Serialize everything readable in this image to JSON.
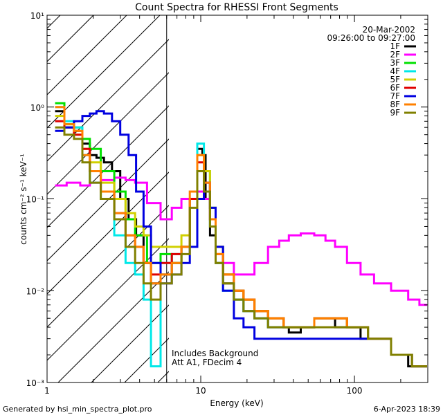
{
  "chart_data": {
    "type": "line",
    "title": "Count Spectra for RHESSI Front Segments",
    "xlabel": "Energy (keV)",
    "ylabel": "counts cm⁻² s⁻¹ keV⁻¹",
    "x_scale": "log",
    "y_scale": "log",
    "xlim": [
      1,
      300
    ],
    "ylim": [
      0.001,
      10
    ],
    "x_ticks": [
      {
        "value": 1,
        "label": "1"
      },
      {
        "value": 10,
        "label": "10"
      },
      {
        "value": 100,
        "label": "100"
      }
    ],
    "y_ticks": [
      {
        "value": 0.001,
        "label": "10⁻³"
      },
      {
        "value": 0.01,
        "label": "10⁻²"
      },
      {
        "value": 0.1,
        "label": "10⁻¹"
      },
      {
        "value": 1,
        "label": "10⁰"
      },
      {
        "value": 10,
        "label": "10¹"
      }
    ],
    "date": "20-Mar-2002",
    "time_range": "09:26:00 to 09:27:00",
    "hatched_region_keV": [
      1,
      6
    ],
    "notes": [
      "Includes Background",
      "Att A1, FDecim 4"
    ],
    "series": [
      {
        "name": "1F",
        "color": "#000000",
        "x": [
          1.2,
          1.4,
          1.6,
          1.8,
          2.0,
          2.2,
          2.5,
          2.8,
          3.2,
          3.6,
          4.0,
          4.5,
          5,
          6,
          7,
          8,
          9,
          10,
          10.5,
          11,
          12,
          13,
          15,
          18,
          20,
          25,
          30,
          35,
          40,
          50,
          60,
          70,
          80,
          100,
          120,
          150,
          200,
          250,
          280
        ],
        "values": [
          0.9,
          0.6,
          0.55,
          0.4,
          0.3,
          0.28,
          0.25,
          0.2,
          0.1,
          0.06,
          0.04,
          0.02,
          0.012,
          0.015,
          0.02,
          0.03,
          0.1,
          0.35,
          0.3,
          0.1,
          0.04,
          0.02,
          0.012,
          0.008,
          0.006,
          0.005,
          0.004,
          0.004,
          0.0035,
          0.004,
          0.005,
          0.005,
          0.004,
          0.004,
          0.003,
          0.003,
          0.002,
          0.0015,
          0.0015
        ]
      },
      {
        "name": "2F",
        "color": "#ff00ff",
        "x": [
          1.2,
          1.5,
          1.8,
          2.0,
          2.5,
          3.0,
          3.5,
          4.0,
          5,
          6,
          7,
          8,
          9,
          10,
          11,
          12,
          13,
          15,
          18,
          20,
          25,
          30,
          35,
          40,
          50,
          60,
          70,
          80,
          100,
          120,
          150,
          200,
          250,
          280
        ],
        "values": [
          0.14,
          0.15,
          0.14,
          0.15,
          0.16,
          0.17,
          0.16,
          0.15,
          0.09,
          0.06,
          0.08,
          0.1,
          0.1,
          0.12,
          0.1,
          0.06,
          0.03,
          0.02,
          0.015,
          0.015,
          0.02,
          0.03,
          0.035,
          0.04,
          0.042,
          0.04,
          0.035,
          0.03,
          0.02,
          0.015,
          0.012,
          0.01,
          0.008,
          0.007
        ]
      },
      {
        "name": "3F",
        "color": "#00e000",
        "x": [
          1.2,
          1.4,
          1.6,
          1.8,
          2.0,
          2.5,
          3.0,
          3.5,
          4.0,
          5,
          6,
          7,
          8,
          9,
          10,
          11,
          12,
          13,
          15,
          18,
          20,
          25,
          30,
          40,
          50,
          60,
          80,
          100,
          150,
          200,
          280
        ],
        "values": [
          1.1,
          0.65,
          0.6,
          0.45,
          0.35,
          0.2,
          0.12,
          0.06,
          0.04,
          0.02,
          0.025,
          0.02,
          0.03,
          0.1,
          0.3,
          0.2,
          0.08,
          0.03,
          0.015,
          0.01,
          0.008,
          0.006,
          0.005,
          0.004,
          0.004,
          0.005,
          0.005,
          0.004,
          0.003,
          0.002,
          0.0015
        ]
      },
      {
        "name": "4F",
        "color": "#00e8e8",
        "x": [
          1.2,
          1.4,
          1.6,
          1.8,
          2.0,
          2.5,
          3.0,
          3.5,
          4.0,
          4.5,
          5,
          6,
          7,
          8,
          9,
          10,
          11,
          12,
          13,
          15,
          18,
          20,
          25,
          30,
          40,
          50,
          60,
          80,
          100,
          150,
          200,
          280
        ],
        "values": [
          1.0,
          0.7,
          0.6,
          0.3,
          0.15,
          0.1,
          0.04,
          0.02,
          0.015,
          0.008,
          0.0015,
          0.02,
          0.025,
          0.03,
          0.1,
          0.4,
          0.2,
          0.05,
          0.02,
          0.01,
          0.008,
          0.006,
          0.005,
          0.004,
          0.004,
          0.004,
          0.005,
          0.005,
          0.004,
          0.003,
          0.002,
          0.0015
        ]
      },
      {
        "name": "5F",
        "color": "#d0d000",
        "x": [
          1.2,
          1.4,
          1.6,
          1.8,
          2.0,
          2.5,
          3.0,
          3.5,
          4.0,
          4.5,
          5,
          6,
          7,
          8,
          9,
          10,
          11,
          12,
          13,
          15,
          18,
          20,
          25,
          30,
          40,
          50,
          60,
          80,
          100,
          150,
          200,
          280
        ],
        "values": [
          0.8,
          0.6,
          0.5,
          0.35,
          0.25,
          0.15,
          0.1,
          0.07,
          0.05,
          0.04,
          0.03,
          0.03,
          0.03,
          0.04,
          0.1,
          0.3,
          0.2,
          0.08,
          0.03,
          0.015,
          0.01,
          0.008,
          0.006,
          0.005,
          0.004,
          0.004,
          0.005,
          0.005,
          0.004,
          0.003,
          0.002,
          0.0015
        ]
      },
      {
        "name": "6F",
        "color": "#e00000",
        "x": [
          1.2,
          1.4,
          1.6,
          1.8,
          2.0,
          2.5,
          3.0,
          3.5,
          4.0,
          4.5,
          5,
          6,
          7,
          8,
          9,
          10,
          11,
          12,
          13,
          15,
          18,
          20,
          25,
          30,
          40,
          50,
          60,
          80,
          100,
          150,
          200,
          280
        ],
        "values": [
          0.7,
          0.6,
          0.5,
          0.35,
          0.2,
          0.12,
          0.07,
          0.04,
          0.03,
          0.02,
          0.015,
          0.02,
          0.025,
          0.03,
          0.1,
          0.25,
          0.15,
          0.06,
          0.025,
          0.015,
          0.01,
          0.008,
          0.006,
          0.005,
          0.004,
          0.004,
          0.005,
          0.005,
          0.004,
          0.003,
          0.002,
          0.0015
        ]
      },
      {
        "name": "7F",
        "color": "#0000e0",
        "x": [
          1.2,
          1.4,
          1.6,
          1.8,
          2.0,
          2.2,
          2.5,
          2.8,
          3.2,
          3.6,
          4.0,
          4.5,
          5,
          6,
          7,
          8,
          9,
          10,
          11,
          12,
          13,
          15,
          18,
          20,
          25,
          30,
          40,
          50,
          60,
          80,
          100,
          150,
          200,
          280
        ],
        "values": [
          0.55,
          0.6,
          0.7,
          0.8,
          0.85,
          0.9,
          0.85,
          0.7,
          0.5,
          0.3,
          0.12,
          0.05,
          0.02,
          0.012,
          0.015,
          0.02,
          0.03,
          0.1,
          0.15,
          0.08,
          0.03,
          0.01,
          0.005,
          0.004,
          0.003,
          0.003,
          0.003,
          0.003,
          0.003,
          0.003,
          0.003,
          0.003,
          0.002,
          0.0015
        ]
      },
      {
        "name": "8F",
        "color": "#ff8000",
        "x": [
          1.2,
          1.4,
          1.6,
          1.8,
          2.0,
          2.5,
          3.0,
          3.5,
          4.0,
          4.5,
          5,
          6,
          7,
          8,
          9,
          10,
          11,
          12,
          13,
          15,
          18,
          20,
          25,
          30,
          40,
          50,
          60,
          80,
          100,
          150,
          200,
          280
        ],
        "values": [
          1.0,
          0.65,
          0.55,
          0.3,
          0.2,
          0.12,
          0.07,
          0.04,
          0.03,
          0.02,
          0.012,
          0.015,
          0.02,
          0.03,
          0.12,
          0.3,
          0.15,
          0.06,
          0.025,
          0.015,
          0.01,
          0.008,
          0.006,
          0.005,
          0.004,
          0.004,
          0.005,
          0.005,
          0.004,
          0.003,
          0.002,
          0.0015
        ]
      },
      {
        "name": "9F",
        "color": "#808000",
        "x": [
          1.2,
          1.4,
          1.6,
          1.8,
          2.0,
          2.5,
          3.0,
          3.5,
          4.0,
          4.5,
          5,
          6,
          7,
          8,
          9,
          10,
          11,
          12,
          13,
          15,
          18,
          20,
          25,
          30,
          40,
          50,
          60,
          80,
          100,
          150,
          200,
          280
        ],
        "values": [
          0.6,
          0.5,
          0.45,
          0.25,
          0.15,
          0.1,
          0.06,
          0.03,
          0.02,
          0.012,
          0.008,
          0.012,
          0.015,
          0.025,
          0.08,
          0.2,
          0.12,
          0.05,
          0.02,
          0.012,
          0.008,
          0.006,
          0.005,
          0.004,
          0.004,
          0.004,
          0.004,
          0.004,
          0.004,
          0.003,
          0.002,
          0.0015
        ]
      }
    ]
  },
  "footer": {
    "left": "Generated by hsi_min_spectra_plot.pro",
    "right": "6-Apr-2023 18:39"
  }
}
